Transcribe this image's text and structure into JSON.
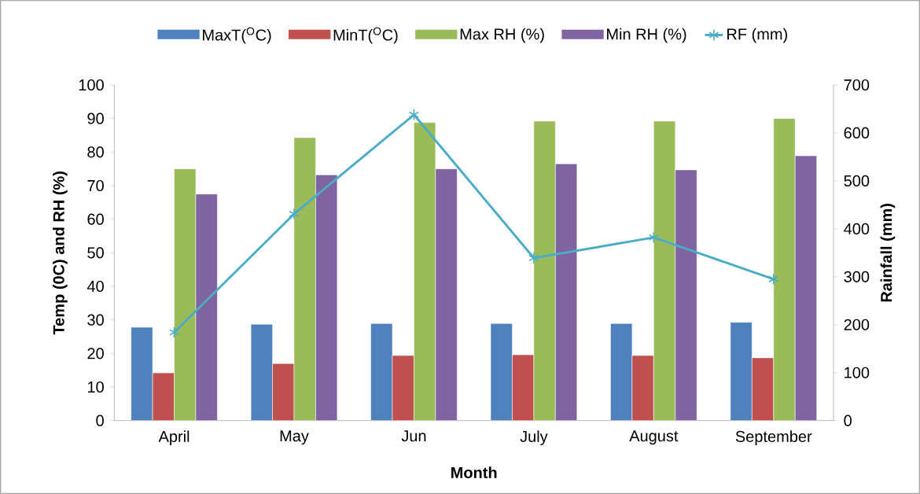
{
  "chart_data": {
    "type": "bar",
    "xlabel": "Month",
    "ylabel": "Temp (0C) and RH (%)",
    "y2label": "Rainfall (mm)",
    "categories": [
      "April",
      "May",
      "Jun",
      "July",
      "August",
      "September"
    ],
    "series": [
      {
        "name": "MaxT($^{O}$C)",
        "color": "#4f81bd",
        "values": [
          27.8,
          28.7,
          28.9,
          28.9,
          28.9,
          29.3
        ]
      },
      {
        "name": "MinT($^{O}$C)",
        "color": "#c0504d",
        "values": [
          14.2,
          17.0,
          19.4,
          19.6,
          19.4,
          18.7
        ]
      },
      {
        "name": "Max RH (%)",
        "color": "#9bbb59",
        "values": [
          75.0,
          84.3,
          88.8,
          89.2,
          89.2,
          90.0
        ]
      },
      {
        "name": "Min RH (%)",
        "color": "#8064a2",
        "values": [
          67.5,
          73.2,
          75.0,
          76.5,
          74.7,
          78.9
        ]
      },
      {
        "name": "RF (mm)",
        "type": "line",
        "axis": "y2",
        "marker": "cross",
        "color": "#4bacc6",
        "values": [
          184,
          431,
          638,
          339,
          382,
          295
        ]
      }
    ],
    "ylim": [
      0,
      100
    ],
    "yticks": [
      0,
      10,
      20,
      30,
      40,
      50,
      60,
      70,
      80,
      90,
      100
    ],
    "y2lim": [
      0,
      700
    ],
    "y2ticks": [
      0,
      100,
      200,
      300,
      400,
      500,
      600,
      700
    ],
    "legend": "top"
  }
}
